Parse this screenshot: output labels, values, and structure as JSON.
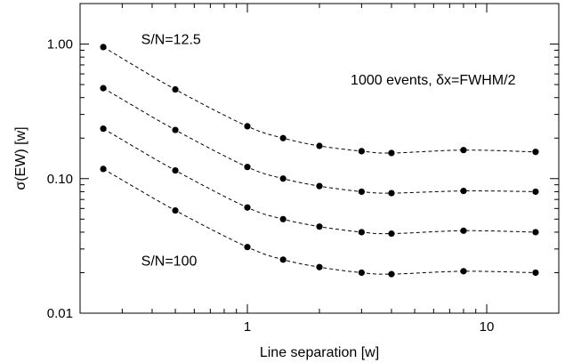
{
  "chart_data": {
    "type": "scatter",
    "title": "",
    "xlabel": "Line separation [w]",
    "ylabel": "σ(EW) [w]",
    "xscale": "log",
    "yscale": "log",
    "xlim": [
      0.2,
      20
    ],
    "ylim": [
      0.01,
      2.0
    ],
    "x_ticks": [
      {
        "value": 1,
        "label": "1"
      },
      {
        "value": 10,
        "label": "10"
      }
    ],
    "y_ticks": [
      {
        "value": 0.01,
        "label": "0.01"
      },
      {
        "value": 0.1,
        "label": "0.10"
      },
      {
        "value": 1,
        "label": "1.00"
      }
    ],
    "grid": false,
    "marker": "filled-circle",
    "line_style": "dashed",
    "series": [
      {
        "x": [
          0.25,
          0.5,
          1,
          1.41,
          2,
          3,
          4,
          8,
          16
        ],
        "y": [
          0.95,
          0.46,
          0.245,
          0.2,
          0.175,
          0.16,
          0.155,
          0.163,
          0.158
        ]
      },
      {
        "x": [
          0.25,
          0.5,
          1,
          1.41,
          2,
          3,
          4,
          8,
          16
        ],
        "y": [
          0.47,
          0.23,
          0.122,
          0.1,
          0.088,
          0.08,
          0.078,
          0.081,
          0.08
        ]
      },
      {
        "x": [
          0.25,
          0.5,
          1,
          1.41,
          2,
          3,
          4,
          8,
          16
        ],
        "y": [
          0.235,
          0.115,
          0.061,
          0.05,
          0.044,
          0.04,
          0.039,
          0.041,
          0.04
        ]
      },
      {
        "x": [
          0.25,
          0.5,
          1,
          1.41,
          2,
          3,
          4,
          8,
          16
        ],
        "y": [
          0.118,
          0.058,
          0.031,
          0.025,
          0.022,
          0.02,
          0.0195,
          0.0205,
          0.02
        ]
      }
    ],
    "annotations": [
      {
        "text": "S/N=12.5",
        "x": 0.36,
        "y": 1.0
      },
      {
        "text": "S/N=100",
        "x": 0.36,
        "y": 0.0225
      },
      {
        "text": "1000 events, δx=FWHM/2",
        "x": 2.7,
        "y": 0.5
      }
    ]
  }
}
